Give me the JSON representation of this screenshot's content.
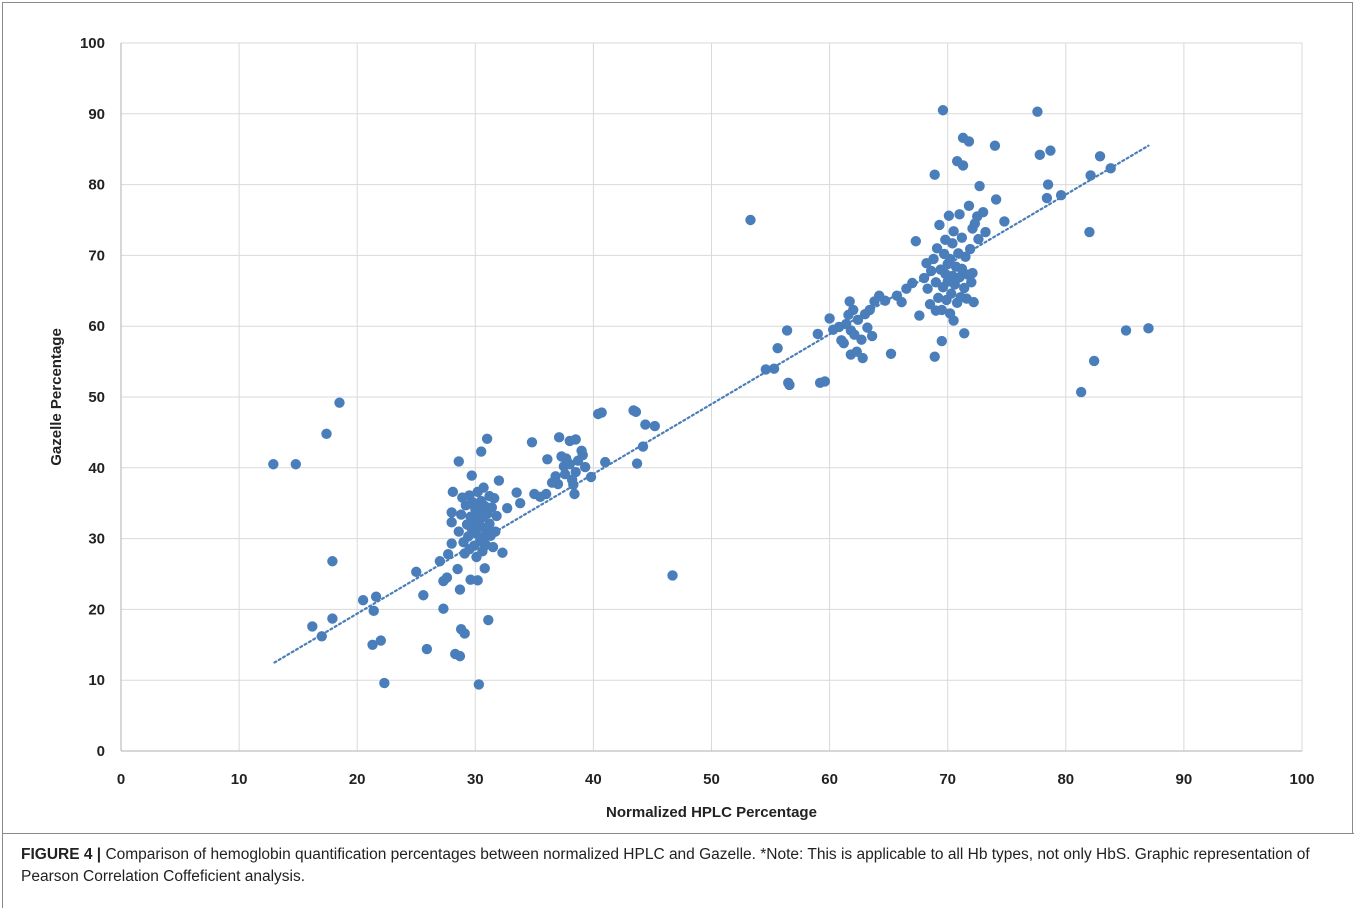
{
  "figure": {
    "caption_label": "FIGURE 4 |",
    "caption_text": " Comparison of hemoglobin quantification percentages between normalized HPLC and Gazelle. *Note: This is applicable to all Hb types, not only HbS. Graphic representation of Pearson Correlation Coffeficient analysis."
  },
  "chart_data": {
    "type": "scatter",
    "title": "",
    "xlabel": "Normalized HPLC Percentage",
    "ylabel": "Gazelle Percentage",
    "xlim": [
      0,
      100
    ],
    "ylim": [
      0,
      100
    ],
    "xticks": [
      0,
      10,
      20,
      30,
      40,
      50,
      60,
      70,
      80,
      90,
      100
    ],
    "yticks": [
      0,
      10,
      20,
      30,
      40,
      50,
      60,
      70,
      80,
      90,
      100
    ],
    "grid": true,
    "legend": "none",
    "colors": {
      "points": "#4a7ebb",
      "trendline": "#4a7ebb",
      "grid": "#d9d9d9"
    },
    "trendline": {
      "style": "dotted",
      "x": [
        13,
        87
      ],
      "y": [
        12.5,
        85.5
      ]
    },
    "points": [
      [
        12.9,
        40.5
      ],
      [
        14.8,
        40.5
      ],
      [
        17.4,
        44.8
      ],
      [
        18.5,
        49.2
      ],
      [
        17.9,
        26.8
      ],
      [
        16.2,
        17.6
      ],
      [
        17.0,
        16.2
      ],
      [
        17.9,
        18.7
      ],
      [
        20.5,
        21.3
      ],
      [
        21.6,
        21.8
      ],
      [
        21.4,
        19.8
      ],
      [
        21.3,
        15.0
      ],
      [
        22.0,
        15.6
      ],
      [
        22.3,
        9.6
      ],
      [
        25.0,
        25.3
      ],
      [
        25.6,
        22.0
      ],
      [
        25.9,
        14.4
      ],
      [
        27.0,
        26.8
      ],
      [
        27.3,
        24.0
      ],
      [
        27.6,
        24.5
      ],
      [
        27.3,
        20.1
      ],
      [
        27.7,
        27.8
      ],
      [
        28.0,
        29.3
      ],
      [
        28.0,
        32.3
      ],
      [
        28.0,
        33.7
      ],
      [
        28.1,
        36.6
      ],
      [
        28.3,
        13.7
      ],
      [
        28.5,
        25.7
      ],
      [
        28.7,
        13.4
      ],
      [
        28.7,
        22.8
      ],
      [
        28.8,
        17.2
      ],
      [
        29.1,
        16.6
      ],
      [
        28.6,
        40.9
      ],
      [
        28.6,
        31.0
      ],
      [
        28.8,
        33.4
      ],
      [
        28.9,
        35.8
      ],
      [
        29.0,
        29.5
      ],
      [
        29.1,
        27.9
      ],
      [
        29.2,
        34.7
      ],
      [
        29.3,
        32.0
      ],
      [
        29.4,
        30.3
      ],
      [
        29.5,
        28.5
      ],
      [
        29.5,
        36.1
      ],
      [
        29.6,
        33.1
      ],
      [
        29.6,
        24.2
      ],
      [
        29.7,
        38.9
      ],
      [
        29.7,
        31.4
      ],
      [
        29.8,
        35.1
      ],
      [
        29.9,
        29.0
      ],
      [
        30.0,
        34.2
      ],
      [
        30.0,
        32.6
      ],
      [
        30.1,
        27.4
      ],
      [
        30.1,
        30.7
      ],
      [
        30.2,
        36.6
      ],
      [
        30.2,
        24.1
      ],
      [
        30.3,
        33.6
      ],
      [
        30.3,
        9.4
      ],
      [
        30.4,
        31.8
      ],
      [
        30.4,
        29.6
      ],
      [
        30.5,
        35.3
      ],
      [
        30.5,
        42.3
      ],
      [
        30.6,
        28.2
      ],
      [
        30.6,
        33.0
      ],
      [
        30.7,
        30.2
      ],
      [
        30.7,
        37.2
      ],
      [
        30.8,
        34.6
      ],
      [
        30.8,
        25.8
      ],
      [
        30.9,
        31.3
      ],
      [
        30.9,
        29.1
      ],
      [
        31.0,
        33.5
      ],
      [
        31.0,
        44.1
      ],
      [
        31.1,
        18.5
      ],
      [
        31.2,
        36.0
      ],
      [
        31.2,
        32.1
      ],
      [
        31.3,
        30.4
      ],
      [
        31.4,
        34.4
      ],
      [
        31.5,
        28.8
      ],
      [
        31.6,
        35.7
      ],
      [
        31.7,
        31.0
      ],
      [
        31.8,
        33.2
      ],
      [
        32.0,
        38.2
      ],
      [
        32.3,
        28.0
      ],
      [
        32.7,
        34.3
      ],
      [
        33.5,
        36.5
      ],
      [
        33.8,
        35.0
      ],
      [
        34.8,
        43.6
      ],
      [
        35.0,
        36.3
      ],
      [
        35.5,
        35.9
      ],
      [
        36.0,
        36.3
      ],
      [
        36.1,
        41.2
      ],
      [
        36.5,
        37.9
      ],
      [
        36.8,
        38.8
      ],
      [
        37.0,
        37.7
      ],
      [
        37.1,
        44.3
      ],
      [
        37.3,
        41.6
      ],
      [
        37.5,
        40.2
      ],
      [
        37.6,
        39.1
      ],
      [
        37.7,
        41.3
      ],
      [
        38.0,
        43.8
      ],
      [
        38.0,
        40.5
      ],
      [
        38.2,
        38.3
      ],
      [
        38.3,
        37.6
      ],
      [
        38.4,
        36.3
      ],
      [
        38.5,
        44.0
      ],
      [
        38.5,
        39.4
      ],
      [
        38.7,
        41.0
      ],
      [
        39.0,
        42.4
      ],
      [
        39.1,
        41.8
      ],
      [
        39.3,
        40.1
      ],
      [
        39.8,
        38.7
      ],
      [
        40.4,
        47.6
      ],
      [
        40.7,
        47.8
      ],
      [
        41.0,
        40.8
      ],
      [
        43.4,
        48.1
      ],
      [
        43.6,
        47.9
      ],
      [
        43.7,
        40.6
      ],
      [
        44.2,
        43.0
      ],
      [
        44.4,
        46.1
      ],
      [
        45.2,
        45.9
      ],
      [
        46.7,
        24.8
      ],
      [
        53.3,
        75.0
      ],
      [
        54.6,
        53.9
      ],
      [
        55.3,
        54.0
      ],
      [
        55.6,
        56.9
      ],
      [
        56.4,
        59.4
      ],
      [
        56.5,
        52.0
      ],
      [
        56.6,
        51.7
      ],
      [
        59.0,
        58.9
      ],
      [
        59.2,
        52.0
      ],
      [
        59.6,
        52.2
      ],
      [
        60.0,
        61.1
      ],
      [
        60.3,
        59.5
      ],
      [
        60.8,
        59.9
      ],
      [
        61.0,
        58.0
      ],
      [
        61.2,
        57.6
      ],
      [
        61.4,
        60.3
      ],
      [
        61.6,
        61.6
      ],
      [
        61.7,
        63.5
      ],
      [
        61.8,
        59.4
      ],
      [
        61.8,
        56.0
      ],
      [
        62.0,
        62.3
      ],
      [
        62.1,
        58.8
      ],
      [
        62.3,
        56.4
      ],
      [
        62.4,
        60.9
      ],
      [
        62.7,
        58.1
      ],
      [
        62.8,
        55.5
      ],
      [
        63.0,
        61.7
      ],
      [
        63.2,
        59.8
      ],
      [
        63.4,
        62.3
      ],
      [
        63.6,
        58.6
      ],
      [
        63.8,
        63.5
      ],
      [
        64.2,
        64.3
      ],
      [
        64.7,
        63.6
      ],
      [
        65.2,
        56.1
      ],
      [
        65.7,
        64.3
      ],
      [
        66.1,
        63.4
      ],
      [
        66.5,
        65.3
      ],
      [
        67.0,
        66.1
      ],
      [
        67.3,
        72.0
      ],
      [
        67.6,
        61.5
      ],
      [
        68.0,
        66.8
      ],
      [
        68.2,
        68.9
      ],
      [
        68.3,
        65.3
      ],
      [
        68.5,
        63.1
      ],
      [
        68.6,
        67.8
      ],
      [
        68.8,
        69.5
      ],
      [
        68.9,
        81.4
      ],
      [
        68.9,
        55.7
      ],
      [
        69.0,
        62.2
      ],
      [
        69.0,
        66.2
      ],
      [
        69.1,
        71.0
      ],
      [
        69.2,
        64.0
      ],
      [
        69.3,
        74.3
      ],
      [
        69.4,
        68.0
      ],
      [
        69.5,
        62.3
      ],
      [
        69.5,
        57.9
      ],
      [
        69.6,
        90.5
      ],
      [
        69.6,
        65.5
      ],
      [
        69.7,
        70.2
      ],
      [
        69.8,
        67.4
      ],
      [
        69.8,
        72.2
      ],
      [
        69.9,
        63.7
      ],
      [
        70.0,
        68.8
      ],
      [
        70.0,
        66.3
      ],
      [
        70.1,
        75.6
      ],
      [
        70.2,
        61.8
      ],
      [
        70.2,
        69.5
      ],
      [
        70.3,
        64.6
      ],
      [
        70.4,
        71.7
      ],
      [
        70.4,
        67.1
      ],
      [
        70.5,
        60.8
      ],
      [
        70.5,
        73.4
      ],
      [
        70.6,
        65.9
      ],
      [
        70.7,
        68.4
      ],
      [
        70.8,
        83.3
      ],
      [
        70.8,
        63.3
      ],
      [
        70.9,
        70.3
      ],
      [
        71.0,
        66.9
      ],
      [
        71.0,
        75.8
      ],
      [
        71.1,
        64.1
      ],
      [
        71.2,
        72.5
      ],
      [
        71.2,
        68.1
      ],
      [
        71.3,
        82.7
      ],
      [
        71.3,
        86.6
      ],
      [
        71.4,
        59.0
      ],
      [
        71.4,
        65.4
      ],
      [
        71.5,
        69.8
      ],
      [
        71.6,
        63.9
      ],
      [
        71.7,
        67.3
      ],
      [
        71.8,
        86.1
      ],
      [
        71.8,
        77.0
      ],
      [
        71.9,
        70.9
      ],
      [
        72.0,
        66.2
      ],
      [
        72.1,
        73.8
      ],
      [
        72.1,
        67.5
      ],
      [
        72.2,
        63.4
      ],
      [
        72.3,
        74.5
      ],
      [
        72.5,
        75.5
      ],
      [
        72.6,
        72.3
      ],
      [
        72.7,
        79.8
      ],
      [
        73.0,
        76.1
      ],
      [
        73.2,
        73.3
      ],
      [
        74.0,
        85.5
      ],
      [
        74.1,
        77.9
      ],
      [
        74.8,
        74.8
      ],
      [
        77.6,
        90.3
      ],
      [
        77.8,
        84.2
      ],
      [
        78.4,
        78.1
      ],
      [
        78.5,
        80.0
      ],
      [
        78.7,
        84.8
      ],
      [
        79.6,
        78.5
      ],
      [
        81.3,
        50.7
      ],
      [
        82.0,
        73.3
      ],
      [
        82.1,
        81.3
      ],
      [
        82.4,
        55.1
      ],
      [
        82.9,
        84.0
      ],
      [
        83.8,
        82.3
      ],
      [
        85.1,
        59.4
      ],
      [
        87.0,
        59.7
      ]
    ]
  }
}
